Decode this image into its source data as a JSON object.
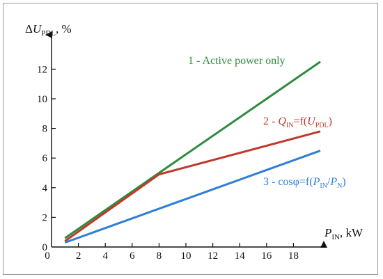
{
  "chart_data": {
    "type": "line",
    "ylabel": {
      "delta": "Δ",
      "var": "U",
      "sub": "PDL",
      "tail": ", %"
    },
    "xlabel": {
      "var": "P",
      "sub": "IN",
      "tail": ", kW"
    },
    "xlim": [
      0,
      20
    ],
    "ylim": [
      0,
      13
    ],
    "x_ticks": [
      0,
      2,
      4,
      6,
      8,
      10,
      12,
      14,
      16,
      18
    ],
    "y_ticks": [
      0,
      2,
      4,
      6,
      8,
      10,
      12
    ],
    "series": [
      {
        "key": "active",
        "color": "#2e8b3e",
        "points": [
          [
            1,
            0.6
          ],
          [
            8,
            5.0
          ],
          [
            20,
            12.5
          ]
        ],
        "label_parts": [
          {
            "t": "1 - Active power only"
          }
        ]
      },
      {
        "key": "reactive",
        "color": "#c0392b",
        "points": [
          [
            1,
            0.4
          ],
          [
            8,
            4.9
          ],
          [
            20,
            7.8
          ]
        ],
        "label_parts": [
          {
            "t": "2 - "
          },
          {
            "t": "Q",
            "i": true
          },
          {
            "t": "IN",
            "sub": true
          },
          {
            "t": "=f("
          },
          {
            "t": "U",
            "i": true
          },
          {
            "t": "PDL",
            "sub": true
          },
          {
            "t": ")"
          }
        ]
      },
      {
        "key": "cosphi",
        "color": "#2f7fd6",
        "points": [
          [
            1,
            0.3
          ],
          [
            20,
            6.5
          ]
        ],
        "label_parts": [
          {
            "t": "3 - cosφ=f("
          },
          {
            "t": "P",
            "i": true
          },
          {
            "t": "IN",
            "sub": true
          },
          {
            "t": "/"
          },
          {
            "t": "P",
            "i": true
          },
          {
            "t": "N",
            "sub": true
          },
          {
            "t": ")"
          }
        ]
      }
    ]
  }
}
